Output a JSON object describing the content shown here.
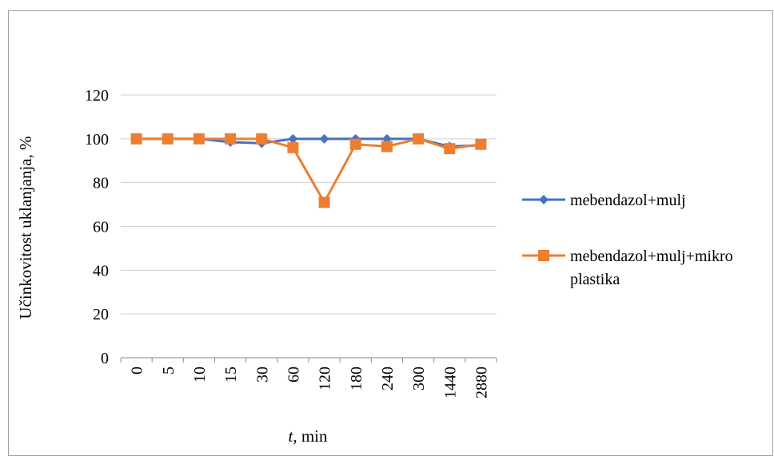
{
  "chart_data": {
    "type": "line",
    "title": "",
    "xlabel_italic": "t",
    "xlabel_rest": ", min",
    "ylabel": "Učinkovitost uklanjanja, %",
    "categories": [
      "0",
      "5",
      "10",
      "15",
      "30",
      "60",
      "120",
      "180",
      "240",
      "300",
      "1440",
      "2880"
    ],
    "ylim": [
      0,
      120
    ],
    "yticks": [
      0,
      20,
      40,
      60,
      80,
      100,
      120
    ],
    "grid": true,
    "legend_position": "right",
    "series": [
      {
        "name": "mebendazol+mulj",
        "color": "#4472C4",
        "marker": "diamond",
        "values": [
          100,
          100,
          100,
          98.5,
          98,
          100,
          100,
          100,
          100,
          100,
          96.5,
          97
        ]
      },
      {
        "name": "mebendazol+mulj+mikro plastika",
        "name_lines": [
          "mebendazol+mulj+mikro",
          "plastika"
        ],
        "color": "#ED7D31",
        "marker": "square",
        "values": [
          100,
          100,
          100,
          100,
          100,
          96,
          71,
          97.5,
          96.5,
          100,
          95.5,
          97.5
        ]
      }
    ]
  }
}
